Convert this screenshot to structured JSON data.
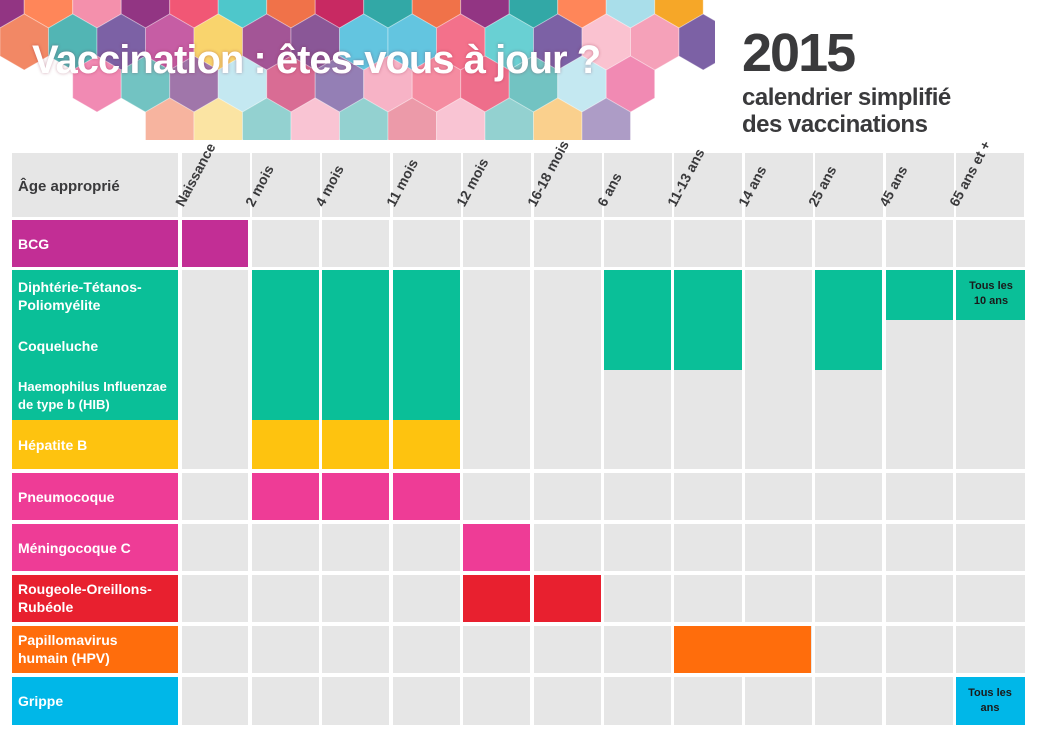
{
  "header": {
    "title": "Vaccination : êtes-vous à jour ?",
    "year": "2015",
    "subtitle_line1": "calendrier simplifié",
    "subtitle_line2": "des vaccinations"
  },
  "table": {
    "corner_label": "Âge approprié",
    "columns": [
      "Naissance",
      "2 mois",
      "4 mois",
      "11 mois",
      "12 mois",
      "16-18 mois",
      "6 ans",
      "11-13 ans",
      "14 ans",
      "25 ans",
      "45 ans",
      "65 ans et +"
    ],
    "vaccines": {
      "bcg": "BCG",
      "dtp": "Diphtérie-Tétanos-Poliomyélite",
      "coqueluche": "Coqueluche",
      "hib": "Haemophilus Influenzae de type b (HIB)",
      "hepatite_b": "Hépatite B",
      "pneumocoque": "Pneumocoque",
      "meningocoque": "Méningocoque C",
      "ror": "Rougeole-Oreillons-Rubéole",
      "hpv": "Papillomavirus humain (HPV)",
      "grippe": "Grippe"
    },
    "notes": {
      "dtp_senior": "Tous les 10 ans",
      "grippe_senior": "Tous les ans"
    },
    "colors": {
      "bcg": "#c22e95",
      "green": "#0abf98",
      "yellow": "#fec30f",
      "pink": "#ee3c96",
      "red": "#e8202f",
      "orange": "#ff6d0c",
      "blue": "#00b7e8",
      "empty": "#e6e6e6"
    }
  }
}
